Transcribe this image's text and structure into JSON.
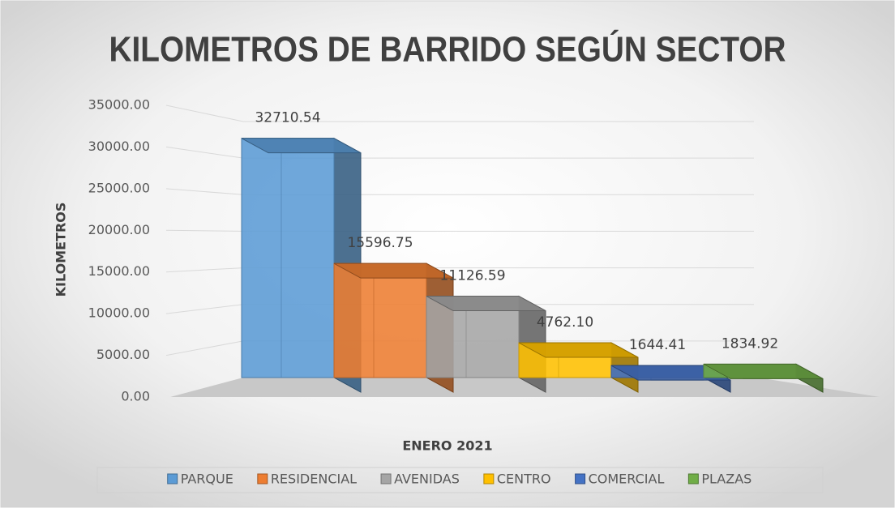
{
  "chart_data": {
    "type": "bar",
    "title": "KILOMETROS DE BARRIDO SEGÚN SECTOR",
    "x_label": "ENERO 2021",
    "y_label": "KILOMETROS",
    "series": [
      {
        "name": "PARQUE",
        "color": "#5b9bd5",
        "values": [
          32710.54
        ]
      },
      {
        "name": "RESIDENCIAL",
        "color": "#ed7d31",
        "values": [
          15596.75
        ]
      },
      {
        "name": "AVENIDAS",
        "color": "#a5a5a5",
        "values": [
          11126.59
        ]
      },
      {
        "name": "CENTRO",
        "color": "#ffc000",
        "values": [
          4762.1
        ],
        "value_labels": [
          "4762.10"
        ]
      },
      {
        "name": "COMERCIAL",
        "color": "#4472c4",
        "values": [
          1644.41
        ]
      },
      {
        "name": "PLAZAS",
        "color": "#70ad47",
        "values": [
          1834.92
        ]
      }
    ],
    "ylim": [
      0,
      35000
    ],
    "yticks": [
      {
        "value": 0,
        "label": "0.00"
      },
      {
        "value": 5000,
        "label": "5000.00"
      },
      {
        "value": 10000,
        "label": "10000.00"
      },
      {
        "value": 15000,
        "label": "15000.00"
      },
      {
        "value": 20000,
        "label": "20000.00"
      },
      {
        "value": 25000,
        "label": "25000.00"
      },
      {
        "value": 30000,
        "label": "30000.00"
      },
      {
        "value": 35000,
        "label": "35000.00"
      }
    ],
    "grid": true,
    "legend": "bottom"
  }
}
